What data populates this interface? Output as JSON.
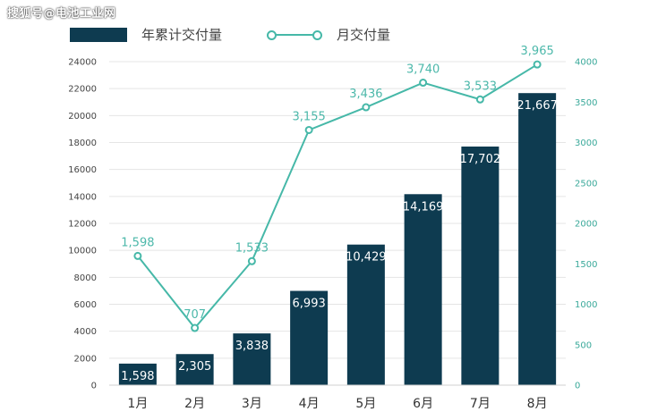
{
  "watermark": "搜狐号@电池工业网",
  "colors": {
    "bar": "#0e3b50",
    "line": "#46b8a8",
    "grid": "#e5e5e5"
  },
  "chart_data": {
    "type": "bar",
    "categories": [
      "1月",
      "2月",
      "3月",
      "4月",
      "5月",
      "6月",
      "7月",
      "8月"
    ],
    "series": [
      {
        "name": "年累计交付量",
        "type": "bar",
        "axis": "left",
        "values": [
          1598,
          2305,
          3838,
          6993,
          10429,
          14169,
          17702,
          21667
        ],
        "labels": [
          "1,598",
          "2,305",
          "3,838",
          "6,993",
          "10,429",
          "14,169",
          "17,702",
          "21,667"
        ]
      },
      {
        "name": "月交付量",
        "type": "line",
        "axis": "right",
        "values": [
          1598,
          707,
          1533,
          3155,
          3436,
          3740,
          3533,
          3965
        ],
        "labels": [
          "1,598",
          "707",
          "1,533",
          "3,155",
          "3,436",
          "3,740",
          "3,533",
          "3,965"
        ]
      }
    ],
    "y_left": {
      "min": 0,
      "max": 24000,
      "ticks": [
        "0",
        "2000",
        "4000",
        "6000",
        "8000",
        "10000",
        "12000",
        "14000",
        "16000",
        "18000",
        "20000",
        "22000",
        "24000"
      ]
    },
    "y_right": {
      "min": 0,
      "max": 4000,
      "ticks": [
        "0",
        "500",
        "1000",
        "1500",
        "2000",
        "2500",
        "3000",
        "3500",
        "4000"
      ]
    },
    "grid": true,
    "legend": "top-left"
  }
}
